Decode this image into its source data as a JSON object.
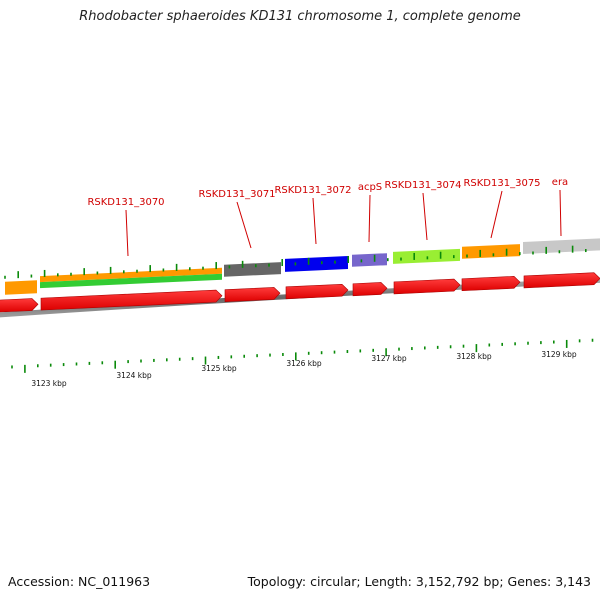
{
  "title": "Rhodobacter sphaeroides KD131 chromosome 1, complete genome",
  "accession": "Accession: NC_011963",
  "summary": "Topology: circular; Length: 3,152,792 bp; Genes: 3,143",
  "genes": [
    "RSKD131_3070",
    "RSKD131_3071",
    "RSKD131_3072",
    "acpS",
    "RSKD131_3074",
    "RSKD131_3075",
    "era"
  ],
  "kbp_ticks": [
    "3123 kbp",
    "3124 kbp",
    "3125 kbp",
    "3126 kbp",
    "3127 kbp",
    "3128 kbp",
    "3129 kbp"
  ],
  "colors": {
    "label": "#d00000",
    "cds": "#ff0000",
    "tick": "#0a8a0a",
    "backbone": "#8a8a8a",
    "cog_orange": "#ff9900",
    "cog_green": "#33cc33",
    "cog_gray": "#666666",
    "cog_blue": "#0000ee",
    "cog_purple": "#7766cc",
    "cog_lime": "#99ee33",
    "cog_lightgray": "#c8c8c8"
  }
}
